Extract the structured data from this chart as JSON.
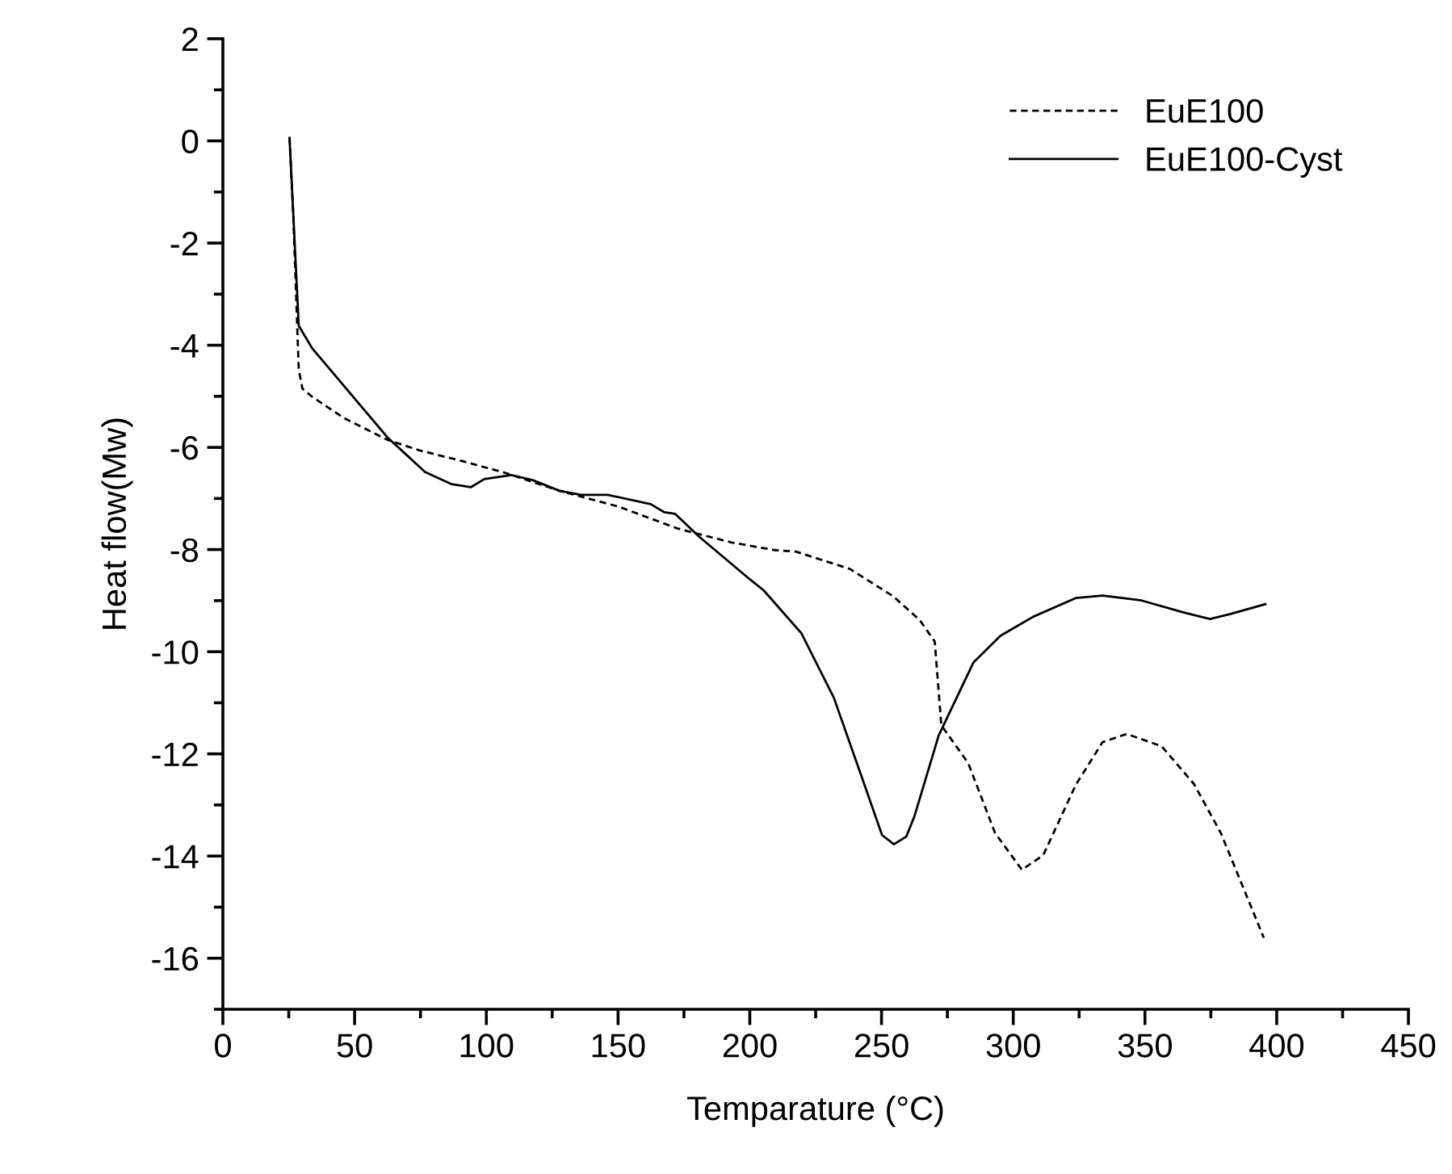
{
  "chart_data": {
    "type": "line",
    "xlabel": "Temparature (°C)",
    "ylabel": "Heat flow(Mw)",
    "xlim": [
      0,
      450
    ],
    "ylim": [
      -17,
      2
    ],
    "xticks": [
      0,
      {
        "value": 25,
        "label": null
      },
      50,
      {
        "value": 75,
        "label": null
      },
      100,
      {
        "value": 125,
        "label": null
      },
      150,
      {
        "value": 175,
        "label": null
      },
      200,
      {
        "value": 225,
        "label": null
      },
      250,
      {
        "value": 275,
        "label": null
      },
      300,
      {
        "value": 325,
        "label": null
      },
      350,
      {
        "value": 375,
        "label": null
      },
      400,
      {
        "value": 425,
        "label": null
      },
      450
    ],
    "yticks": [
      {
        "value": -17,
        "label": null
      },
      -16,
      {
        "value": -15,
        "label": null
      },
      -14,
      {
        "value": -13,
        "label": null
      },
      -12,
      {
        "value": -11,
        "label": null
      },
      -10,
      {
        "value": -9,
        "label": null
      },
      -8,
      {
        "value": -7,
        "label": null
      },
      -6,
      {
        "value": -5,
        "label": null
      },
      -4,
      {
        "value": -3,
        "label": null
      },
      -2,
      {
        "value": -1,
        "label": null
      },
      0,
      {
        "value": 1,
        "label": null
      },
      2
    ],
    "grid": false,
    "legend": "top right",
    "series": [
      {
        "name": "EuE100",
        "color": "#000000",
        "line_style": "dashed",
        "x": [
          25.3,
          26.7,
          28.8,
          30.2,
          33.9,
          46.1,
          62.4,
          74.7,
          91.0,
          107.3,
          127.8,
          150.2,
          172.7,
          193.0,
          209.4,
          217.5,
          238.0,
          254.3,
          264.5,
          270.2,
          272.7,
          282.9,
          293.1,
          303.3,
          311.4,
          323.7,
          333.9,
          343.1,
          356.3,
          368.6,
          378.8,
          395.1
        ],
        "values": [
          0.06,
          -1.43,
          -4.48,
          -4.85,
          -5.01,
          -5.43,
          -5.85,
          -6.06,
          -6.27,
          -6.5,
          -6.85,
          -7.16,
          -7.59,
          -7.86,
          -8.01,
          -8.04,
          -8.38,
          -8.91,
          -9.38,
          -9.8,
          -11.44,
          -12.18,
          -13.55,
          -14.27,
          -13.98,
          -12.61,
          -11.77,
          -11.61,
          -11.85,
          -12.59,
          -13.55,
          -15.6
        ]
      },
      {
        "name": "EuE100-Cyst",
        "color": "#000000",
        "line_style": "solid",
        "x": [
          25.3,
          28.8,
          33.9,
          62.4,
          76.7,
          86.9,
          94.1,
          99.2,
          109.4,
          117.6,
          127.8,
          135.9,
          146.1,
          162.4,
          167.6,
          171.6,
          180.8,
          200.2,
          205.3,
          219.6,
          231.9,
          242.0,
          250.2,
          254.7,
          259.4,
          262.5,
          271.7,
          284.9,
          295.1,
          307.4,
          323.7,
          333.9,
          348.2,
          364.5,
          374.7,
          382.5,
          395.7
        ],
        "values": [
          0.06,
          -3.62,
          -4.06,
          -5.8,
          -6.48,
          -6.72,
          -6.78,
          -6.62,
          -6.54,
          -6.64,
          -6.85,
          -6.93,
          -6.93,
          -7.11,
          -7.27,
          -7.3,
          -7.75,
          -8.59,
          -8.8,
          -9.64,
          -10.9,
          -12.38,
          -13.59,
          -13.77,
          -13.62,
          -13.22,
          -11.64,
          -10.21,
          -9.69,
          -9.32,
          -8.95,
          -8.9,
          -8.99,
          -9.23,
          -9.36,
          -9.26,
          -9.07
        ]
      }
    ]
  }
}
